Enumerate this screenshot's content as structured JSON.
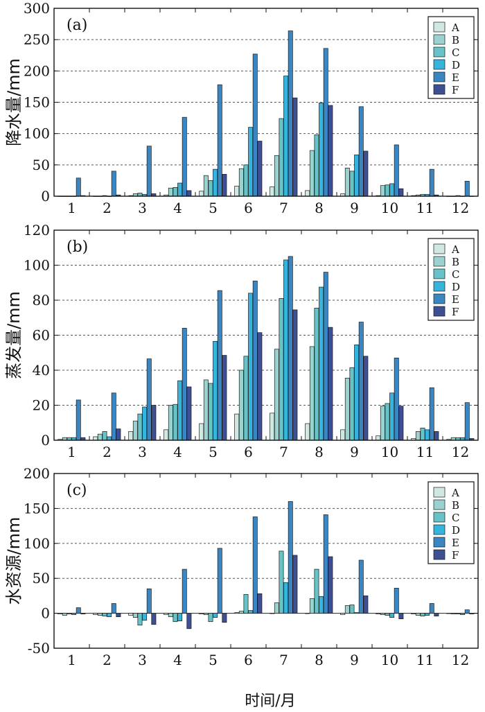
{
  "xlabel": "时间/月",
  "colors": {
    "A": "#cfe9e2",
    "B": "#99d2cf",
    "C": "#66c3c7",
    "D": "#35b5dd",
    "E": "#3a86c2",
    "F": "#3e4f94"
  },
  "chart_data": [
    {
      "type": "bar",
      "panel_label": "(a)",
      "ylabel": "降水量/mm",
      "ylim": [
        0,
        300
      ],
      "yticks": [
        0,
        50,
        100,
        150,
        200,
        250,
        300
      ],
      "gridlines": [
        50,
        100,
        150,
        200,
        250
      ],
      "legend_position": "top-right",
      "categories": [
        "1",
        "2",
        "3",
        "4",
        "5",
        "6",
        "7",
        "8",
        "9",
        "10",
        "11",
        "12"
      ],
      "series": [
        {
          "name": "A",
          "values": [
            0,
            0,
            1,
            2,
            8,
            16,
            15,
            9,
            4,
            1,
            1,
            0
          ]
        },
        {
          "name": "B",
          "values": [
            0,
            0,
            4,
            13,
            33,
            44,
            65,
            73,
            45,
            17,
            2,
            0
          ]
        },
        {
          "name": "C",
          "values": [
            0,
            1,
            5,
            14,
            25,
            50,
            124,
            98,
            40,
            18,
            3,
            1
          ]
        },
        {
          "name": "D",
          "values": [
            0,
            0,
            3,
            21,
            43,
            110,
            192,
            149,
            66,
            20,
            3,
            0
          ]
        },
        {
          "name": "E",
          "values": [
            29,
            40,
            80,
            126,
            178,
            227,
            264,
            236,
            143,
            82,
            43,
            24
          ]
        },
        {
          "name": "F",
          "values": [
            1,
            2,
            4,
            9,
            35,
            88,
            157,
            145,
            72,
            12,
            2,
            0
          ]
        }
      ]
    },
    {
      "type": "bar",
      "panel_label": "(b)",
      "ylabel": "蒸发量/mm",
      "ylim": [
        0,
        120
      ],
      "yticks": [
        0,
        20,
        40,
        60,
        80,
        100,
        120
      ],
      "gridlines": [
        20,
        40,
        60,
        80,
        100
      ],
      "legend_position": "top-right",
      "categories": [
        "1",
        "2",
        "3",
        "4",
        "5",
        "6",
        "7",
        "8",
        "9",
        "10",
        "11",
        "12"
      ],
      "series": [
        {
          "name": "A",
          "values": [
            0.5,
            2,
            5,
            6,
            9.5,
            15,
            15.5,
            9.5,
            6,
            2.5,
            1,
            0.5
          ]
        },
        {
          "name": "B",
          "values": [
            1.5,
            3.5,
            11,
            20,
            34.5,
            40,
            52,
            53.5,
            35.5,
            19.5,
            5,
            1.5
          ]
        },
        {
          "name": "C",
          "values": [
            1.5,
            5,
            15,
            20.5,
            32.5,
            48,
            81,
            75.5,
            41.5,
            21,
            7,
            1.5
          ]
        },
        {
          "name": "D",
          "values": [
            1.5,
            2,
            19,
            34,
            56.5,
            84,
            103,
            87.5,
            54.5,
            27,
            6,
            1.5
          ]
        },
        {
          "name": "E",
          "values": [
            23,
            27,
            46.5,
            64,
            85.5,
            91,
            105,
            96,
            67.5,
            47,
            30,
            21.5
          ]
        },
        {
          "name": "F",
          "values": [
            1.5,
            6.5,
            20,
            30.5,
            48.5,
            61.5,
            74.5,
            64.5,
            48,
            19.5,
            5,
            1
          ]
        }
      ]
    },
    {
      "type": "bar",
      "panel_label": "(c)",
      "ylabel": "水资源/mm",
      "ylim": [
        -50,
        200
      ],
      "yticks": [
        -50,
        0,
        50,
        100,
        150,
        200
      ],
      "gridlines": [
        50,
        100,
        150
      ],
      "legend_position": "top-right",
      "categories": [
        "1",
        "2",
        "3",
        "4",
        "5",
        "6",
        "7",
        "8",
        "9",
        "10",
        "11",
        "12"
      ],
      "series": [
        {
          "name": "A",
          "values": [
            -1,
            -2,
            -3,
            -2,
            -1,
            1,
            0,
            0,
            -2,
            -1,
            -1,
            0
          ]
        },
        {
          "name": "B",
          "values": [
            -3,
            -3,
            -6,
            -5,
            -2,
            3,
            15,
            21,
            11,
            -2,
            -3,
            -1
          ]
        },
        {
          "name": "C",
          "values": [
            -1,
            -4,
            -17,
            -12,
            -12,
            27,
            89,
            63,
            12,
            -3,
            -4,
            -1
          ]
        },
        {
          "name": "D",
          "values": [
            -2,
            -5,
            -10,
            -11,
            -6,
            4,
            44,
            24,
            1,
            -6,
            -3,
            -2
          ]
        },
        {
          "name": "E",
          "values": [
            8,
            14,
            35,
            63,
            93,
            138,
            160,
            141,
            76,
            36,
            14,
            5
          ]
        },
        {
          "name": "F",
          "values": [
            -1,
            -5,
            -16,
            -22,
            -13,
            28,
            83,
            81,
            25,
            -8,
            -4,
            -1
          ]
        }
      ]
    }
  ]
}
